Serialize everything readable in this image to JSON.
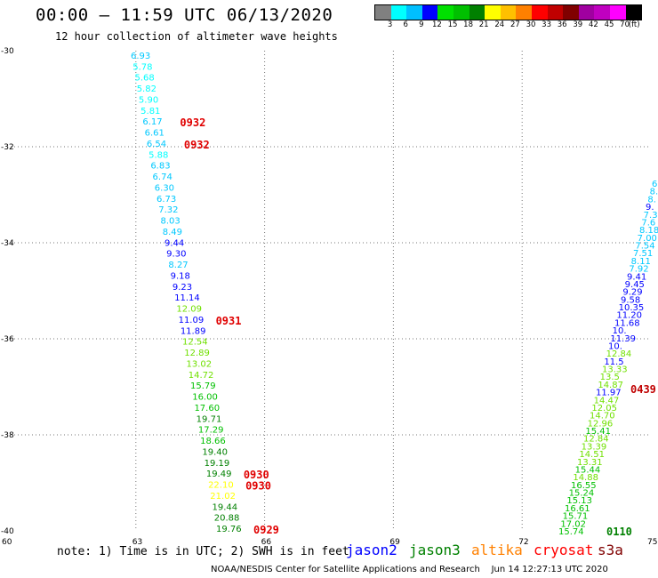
{
  "header": {
    "title": "00:00 – 11:59 UTC 06/13/2020",
    "subtitle": "12 hour collection of altimeter wave heights"
  },
  "color_scale": {
    "labels": [
      "3",
      "6",
      "9",
      "12",
      "15",
      "18",
      "21",
      "24",
      "27",
      "30",
      "33",
      "36",
      "39",
      "42",
      "45",
      "70",
      "(ft)"
    ],
    "colors": [
      "#808080",
      "#00ffff",
      "#00bfff",
      "#0000ff",
      "#00e000",
      "#00c000",
      "#008000",
      "#ffff00",
      "#ffc000",
      "#ff8000",
      "#ff0000",
      "#c00000",
      "#800000",
      "#a000a0",
      "#c000c0",
      "#ff00ff",
      "#000000"
    ]
  },
  "axes": {
    "lon_labels": [
      "60",
      "63",
      "66",
      "69",
      "72",
      "75"
    ],
    "lat_labels": [
      "-30",
      "-32",
      "-34",
      "-36",
      "-38",
      "-40"
    ]
  },
  "tracks": [
    {
      "name": "track-1",
      "points": [
        {
          "v": "6.93",
          "c": "#00c8ff"
        },
        {
          "v": "5.78",
          "c": "#00ffff"
        },
        {
          "v": "5.68",
          "c": "#00ffff"
        },
        {
          "v": "5.82",
          "c": "#00ffff"
        },
        {
          "v": "5.90",
          "c": "#00ffff"
        },
        {
          "v": "5.81",
          "c": "#00ffff"
        },
        {
          "v": "6.17",
          "c": "#00c8ff"
        },
        {
          "v": "6.61",
          "c": "#00c8ff"
        },
        {
          "v": "6.54",
          "c": "#00c8ff"
        },
        {
          "v": "5.88",
          "c": "#00ffff"
        },
        {
          "v": "6.83",
          "c": "#00c8ff"
        },
        {
          "v": "6.74",
          "c": "#00c8ff"
        },
        {
          "v": "6.30",
          "c": "#00c8ff"
        },
        {
          "v": "6.73",
          "c": "#00c8ff"
        },
        {
          "v": "7.32",
          "c": "#00c8ff"
        },
        {
          "v": "8.03",
          "c": "#00c8ff"
        },
        {
          "v": "8.49",
          "c": "#00c8ff"
        },
        {
          "v": "9.44",
          "c": "#0000ff"
        },
        {
          "v": "9.30",
          "c": "#0000ff"
        },
        {
          "v": "8.27",
          "c": "#00c8ff"
        },
        {
          "v": "9.18",
          "c": "#0000ff"
        },
        {
          "v": "9.23",
          "c": "#0000ff"
        },
        {
          "v": "11.14",
          "c": "#0000ff"
        },
        {
          "v": "12.09",
          "c": "#70e000"
        },
        {
          "v": "11.09",
          "c": "#0000ff"
        },
        {
          "v": "11.89",
          "c": "#0000ff"
        },
        {
          "v": "12.54",
          "c": "#70e000"
        },
        {
          "v": "12.89",
          "c": "#70e000"
        },
        {
          "v": "13.02",
          "c": "#70e000"
        },
        {
          "v": "14.72",
          "c": "#70e000"
        },
        {
          "v": "15.79",
          "c": "#00c000"
        },
        {
          "v": "16.00",
          "c": "#00c000"
        },
        {
          "v": "17.60",
          "c": "#00c000"
        },
        {
          "v": "19.71",
          "c": "#008000"
        },
        {
          "v": "17.29",
          "c": "#00c000"
        },
        {
          "v": "18.66",
          "c": "#00c000"
        },
        {
          "v": "19.40",
          "c": "#008000"
        },
        {
          "v": "19.19",
          "c": "#008000"
        },
        {
          "v": "19.49",
          "c": "#008000"
        },
        {
          "v": "22.10",
          "c": "#ffff00"
        },
        {
          "v": "21.02",
          "c": "#ffff00"
        },
        {
          "v": "19.44",
          "c": "#008000"
        },
        {
          "v": "20.88",
          "c": "#008000"
        },
        {
          "v": "19.76",
          "c": "#008000"
        }
      ],
      "times": [
        {
          "t": "0932",
          "index": 6
        },
        {
          "t": "0932",
          "index": 8
        },
        {
          "t": "0931",
          "index": 24
        },
        {
          "t": "0930",
          "index": 38
        },
        {
          "t": "0930",
          "index": 39
        },
        {
          "t": "0929",
          "index": 43
        }
      ]
    },
    {
      "name": "track-2",
      "points": [
        {
          "v": "6.",
          "c": "#00c8ff"
        },
        {
          "v": "8.",
          "c": "#00c8ff"
        },
        {
          "v": "8.",
          "c": "#00c8ff"
        },
        {
          "v": "9.",
          "c": "#0000ff"
        },
        {
          "v": "7.3",
          "c": "#00c8ff"
        },
        {
          "v": "7.6",
          "c": "#00c8ff"
        },
        {
          "v": "8.18",
          "c": "#00c8ff"
        },
        {
          "v": "7.00",
          "c": "#00c8ff"
        },
        {
          "v": "7.54",
          "c": "#00c8ff"
        },
        {
          "v": "7.51",
          "c": "#00c8ff"
        },
        {
          "v": "8.11",
          "c": "#00c8ff"
        },
        {
          "v": "7.92",
          "c": "#00c8ff"
        },
        {
          "v": "9.41",
          "c": "#0000ff"
        },
        {
          "v": "9.45",
          "c": "#0000ff"
        },
        {
          "v": "9.29",
          "c": "#0000ff"
        },
        {
          "v": "9.58",
          "c": "#0000ff"
        },
        {
          "v": "10.35",
          "c": "#0000ff"
        },
        {
          "v": "11.20",
          "c": "#0000ff"
        },
        {
          "v": "11.68",
          "c": "#0000ff"
        },
        {
          "v": "10.",
          "c": "#0000ff"
        },
        {
          "v": "11.39",
          "c": "#0000ff"
        },
        {
          "v": "10.",
          "c": "#0000ff"
        },
        {
          "v": "12.84",
          "c": "#70e000"
        },
        {
          "v": "11.5",
          "c": "#0000ff"
        },
        {
          "v": "13.33",
          "c": "#70e000"
        },
        {
          "v": "13.5",
          "c": "#70e000"
        },
        {
          "v": "14.87",
          "c": "#70e000"
        },
        {
          "v": "11.97",
          "c": "#0000ff"
        },
        {
          "v": "14.47",
          "c": "#70e000"
        },
        {
          "v": "12.05",
          "c": "#70e000"
        },
        {
          "v": "14.70",
          "c": "#70e000"
        },
        {
          "v": "12.96",
          "c": "#70e000"
        },
        {
          "v": "15.41",
          "c": "#00c000"
        },
        {
          "v": "12.84",
          "c": "#70e000"
        },
        {
          "v": "13.39",
          "c": "#70e000"
        },
        {
          "v": "14.51",
          "c": "#70e000"
        },
        {
          "v": "13.31",
          "c": "#70e000"
        },
        {
          "v": "15.44",
          "c": "#00c000"
        },
        {
          "v": "14.88",
          "c": "#70e000"
        },
        {
          "v": "16.55",
          "c": "#00c000"
        },
        {
          "v": "15.24",
          "c": "#00c000"
        },
        {
          "v": "15.13",
          "c": "#00c000"
        },
        {
          "v": "16.61",
          "c": "#00c000"
        },
        {
          "v": "15.71",
          "c": "#00c000"
        },
        {
          "v": "17.02",
          "c": "#00c000"
        },
        {
          "v": "15.74",
          "c": "#00c000"
        }
      ],
      "times": [
        {
          "t": "0439",
          "c": "#c00000"
        },
        {
          "t": "0110",
          "c": "#008000"
        }
      ]
    }
  ],
  "footer": {
    "note": "note: 1) Time is in UTC; 2) SWH is in feet",
    "legend": [
      {
        "name": "jason2",
        "color": "#0000ff"
      },
      {
        "name": "jason3",
        "color": "#008000"
      },
      {
        "name": "altika",
        "color": "#ff8000"
      },
      {
        "name": "cryosat",
        "color": "#ff0000"
      },
      {
        "name": "s3a",
        "color": "#800000"
      }
    ],
    "credit": "NOAA/NESDIS Center for Satellite Applications and Research    Jun 14 12:27:13 UTC 2020"
  }
}
